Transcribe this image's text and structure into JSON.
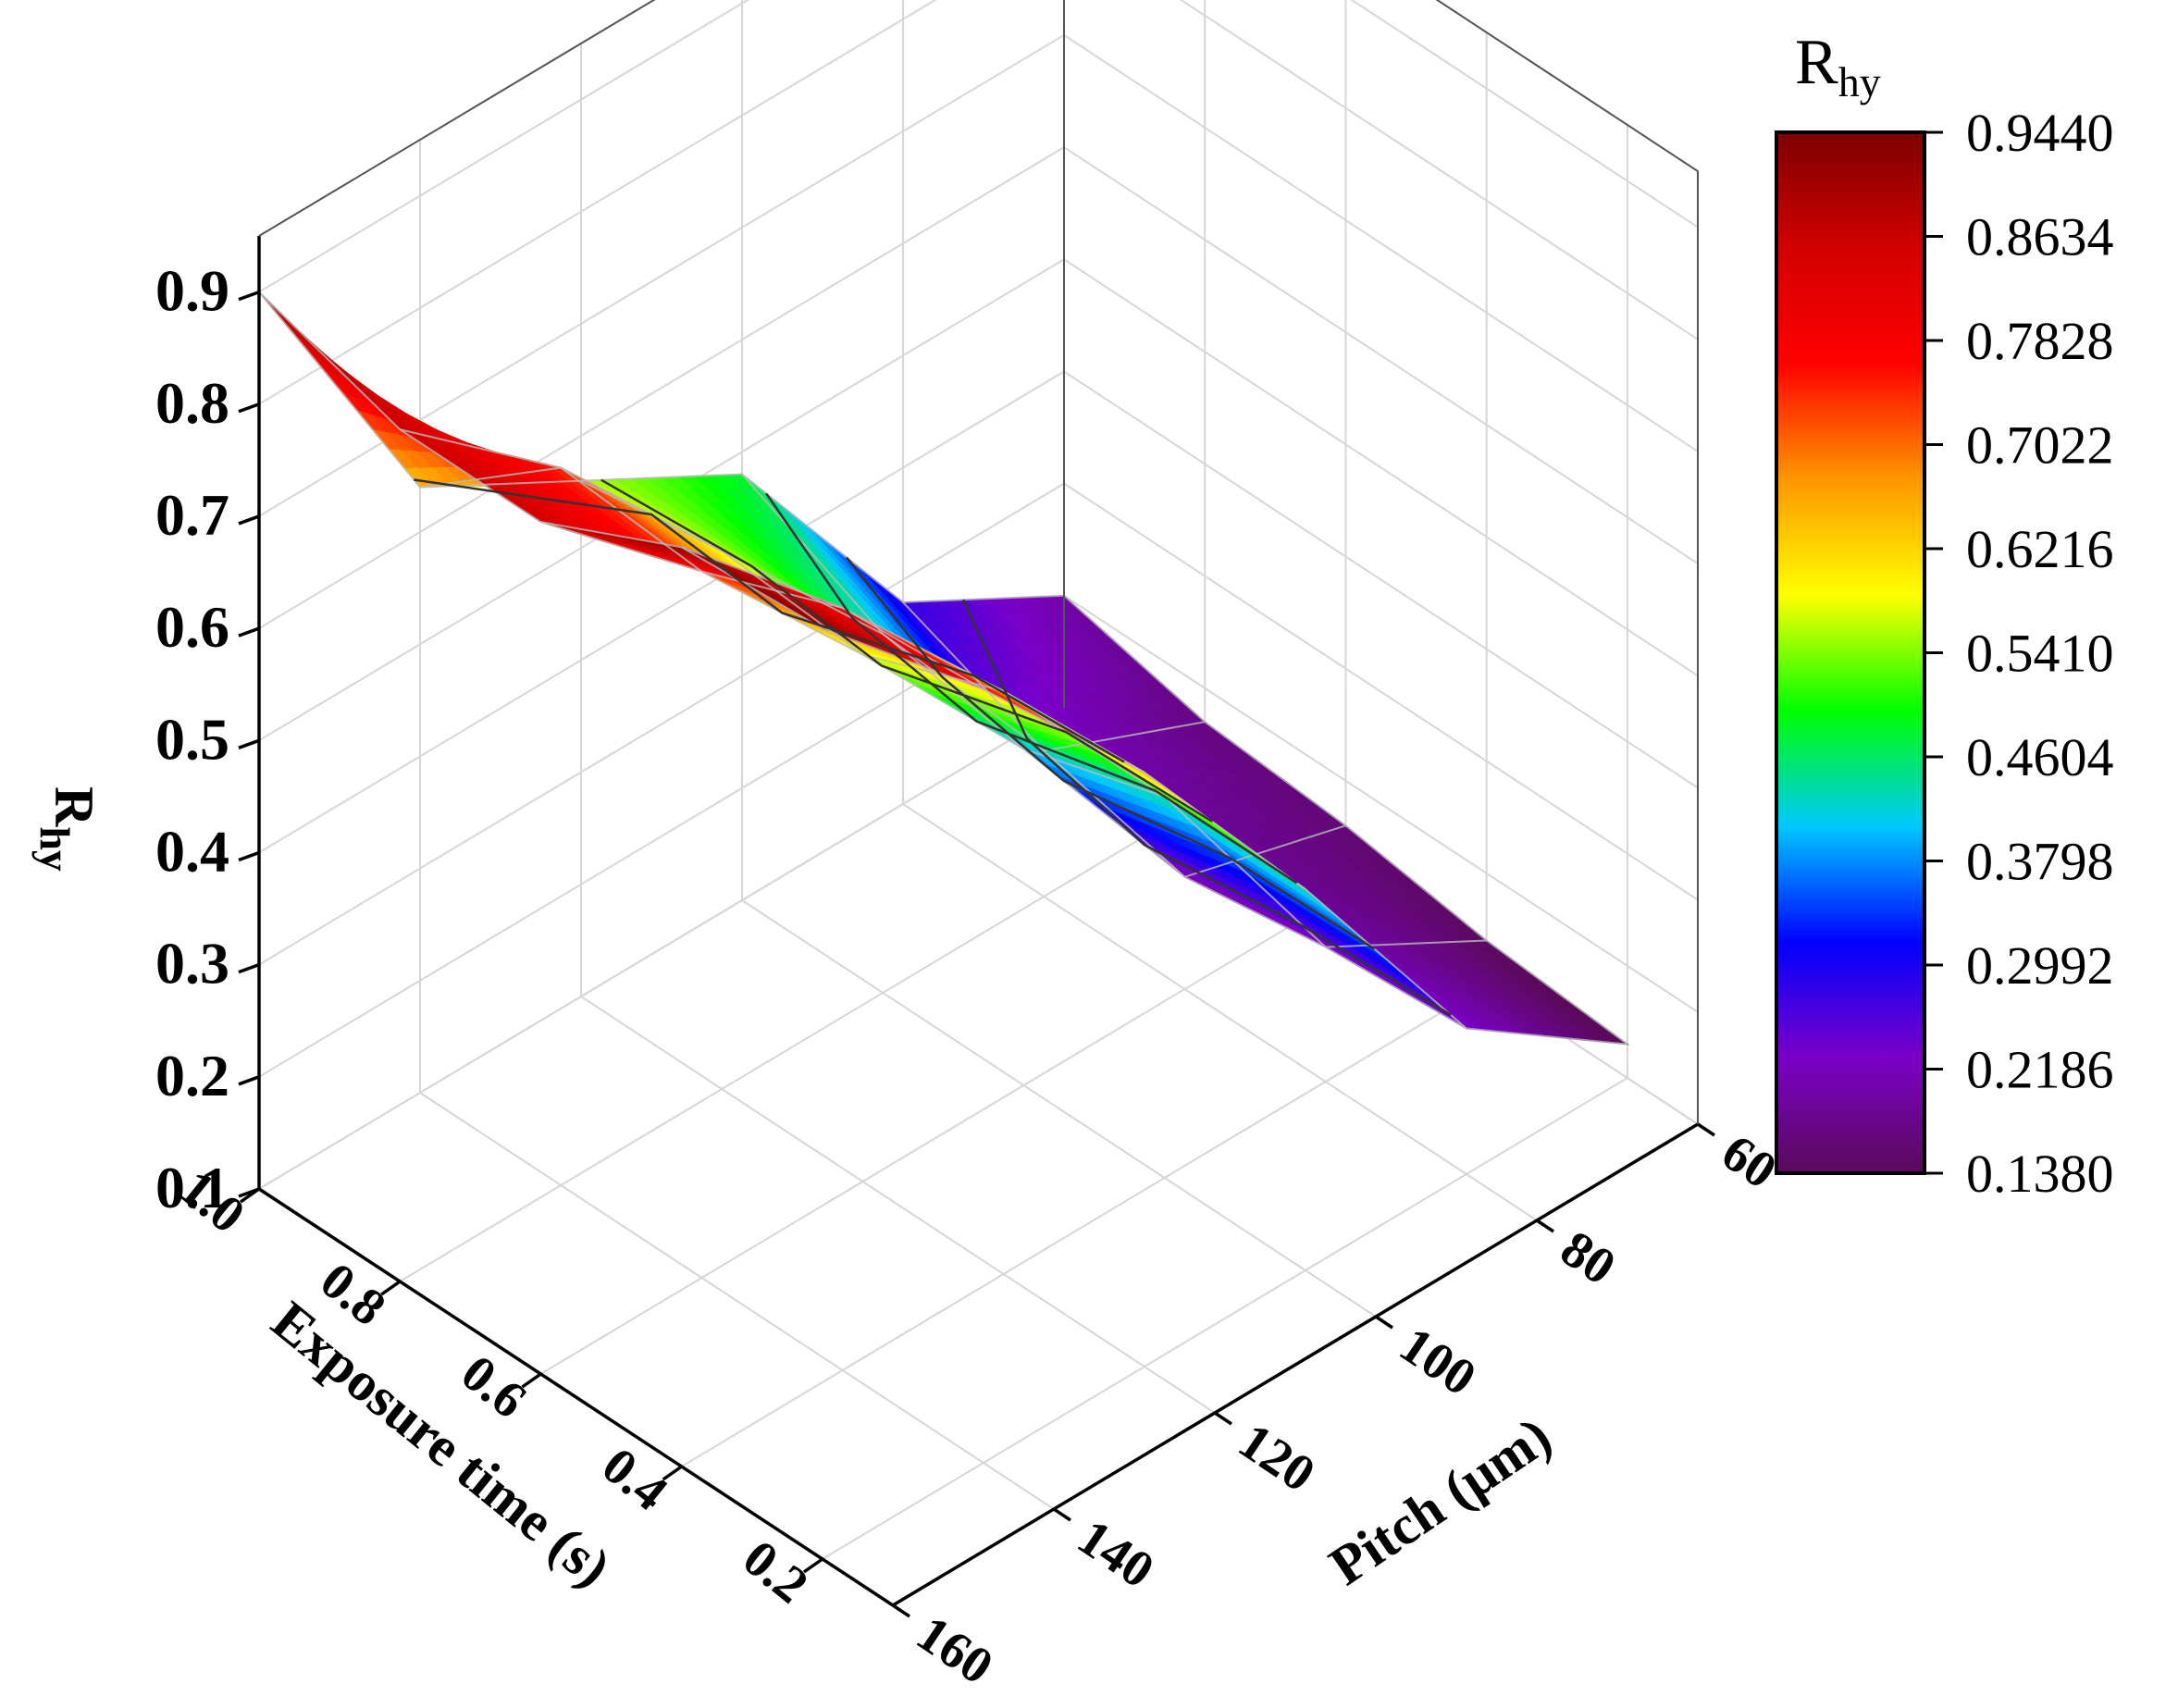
{
  "chart_data": {
    "type": "surface3d",
    "x_axis": {
      "label": "Exposure time (s)",
      "range": [
        0.1,
        1.0
      ],
      "ticks": [
        "1.0",
        "0.8",
        "0.6",
        "0.4",
        "0.2"
      ],
      "tick_values": [
        1.0,
        0.8,
        0.6,
        0.4,
        0.2
      ]
    },
    "y_axis": {
      "label_main": "Pitch (",
      "label_unit": "μm",
      "label_close": ")",
      "range": [
        60,
        160
      ],
      "ticks": [
        "60",
        "80",
        "100",
        "120",
        "140",
        "160"
      ],
      "tick_values": [
        60,
        80,
        100,
        120,
        140,
        160
      ]
    },
    "z_axis": {
      "label_main": "R",
      "label_sub": "hy",
      "range": [
        0.1,
        0.95
      ],
      "ticks": [
        "0.1",
        "0.2",
        "0.3",
        "0.4",
        "0.5",
        "0.6",
        "0.7",
        "0.8",
        "0.9"
      ],
      "tick_values": [
        0.1,
        0.2,
        0.3,
        0.4,
        0.5,
        0.6,
        0.7,
        0.8,
        0.9
      ]
    },
    "colorbar": {
      "title_main": "R",
      "title_sub": "hy",
      "ticks": [
        "0.9440",
        "0.8634",
        "0.7828",
        "0.7022",
        "0.6216",
        "0.5410",
        "0.4604",
        "0.3798",
        "0.2992",
        "0.2186",
        "0.1380"
      ],
      "min": 0.138,
      "max": 0.944,
      "colormap": [
        "#5a0a5a",
        "#7b00c8",
        "#0000ff",
        "#00c8ff",
        "#00ff00",
        "#ffff00",
        "#ff9600",
        "#ff0000",
        "#d20000",
        "#7d0000"
      ]
    },
    "surface": {
      "exposure_time_s": [
        1.0,
        0.8,
        0.6,
        0.4,
        0.2
      ],
      "pitch_um": [
        60,
        80,
        100,
        120,
        140,
        160
      ],
      "Rhy": [
        [
          0.2,
          0.28,
          0.48,
          0.56,
          0.64,
          0.9
        ],
        [
          0.17,
          0.23,
          0.42,
          0.58,
          0.74,
          0.86
        ],
        [
          0.16,
          0.2,
          0.4,
          0.57,
          0.73,
          0.86
        ],
        [
          0.14,
          0.22,
          0.44,
          0.62,
          0.78,
          0.92
        ],
        [
          0.13,
          0.23,
          0.44,
          0.63,
          0.79,
          0.93
        ]
      ]
    },
    "contour_levels": [
      0.25,
      0.35,
      0.45,
      0.55,
      0.65
    ],
    "grid": true
  }
}
